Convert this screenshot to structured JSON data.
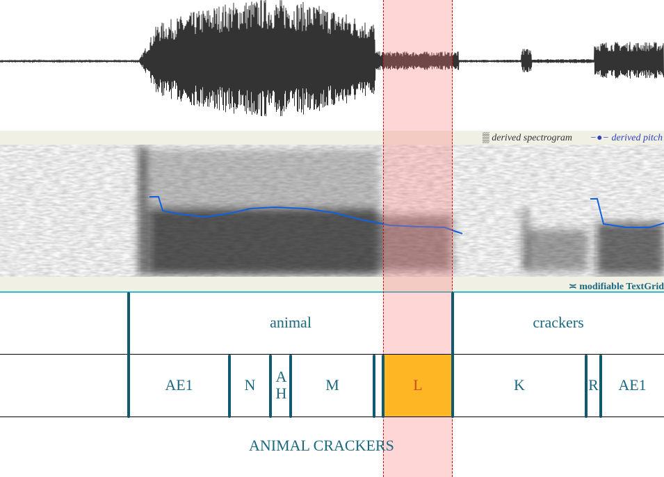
{
  "legend": {
    "spectrogram": "derived spectrogram",
    "pitch": "derived pitch",
    "textgrid": "modifiable TextGrid"
  },
  "tiers": {
    "words": [
      "animal",
      "crackers"
    ],
    "phones": [
      "AE1",
      "N",
      "AH",
      "M",
      "L",
      "K",
      "R",
      "AE1"
    ],
    "sentence": "ANIMAL CRACKERS"
  }
}
